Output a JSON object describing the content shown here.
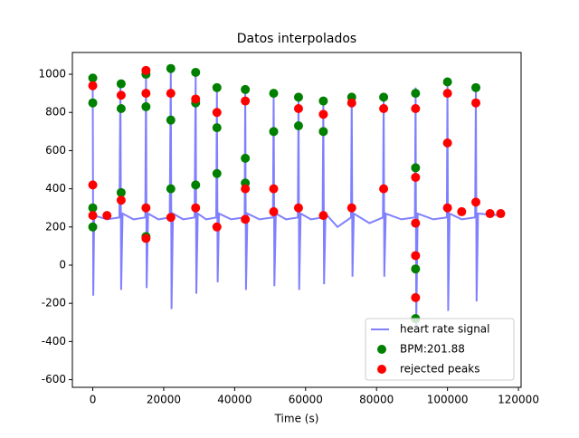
{
  "chart_data": {
    "type": "line_scatter",
    "title": "Datos interpolados",
    "x_label": "Time (s)",
    "xlim": [
      -5750,
      120750
    ],
    "ylim": [
      -640,
      1114
    ],
    "xticks": [
      0,
      20000,
      40000,
      60000,
      80000,
      100000,
      120000
    ],
    "yticks": [
      -600,
      -400,
      -200,
      0,
      200,
      400,
      600,
      800,
      1000
    ],
    "legend_position": "lower right",
    "line": {
      "name": "heart rate signal",
      "color": "#8080ff",
      "x": [
        0,
        150,
        400,
        4000,
        7500,
        7800,
        8000,
        8400,
        11500,
        14800,
        15000,
        15200,
        15600,
        18500,
        21700,
        22000,
        22200,
        22600,
        25500,
        28700,
        29000,
        29200,
        29600,
        32000,
        34800,
        35000,
        35200,
        35600,
        39000,
        42800,
        43000,
        43200,
        43600,
        47000,
        50800,
        51000,
        51200,
        51600,
        54500,
        57800,
        58000,
        58200,
        58600,
        61500,
        64800,
        65000,
        65200,
        65600,
        69000,
        72800,
        73000,
        73200,
        73600,
        78000,
        81800,
        82000,
        82200,
        82600,
        87000,
        90800,
        91000,
        91200,
        91600,
        96000,
        99800,
        100000,
        100200,
        100600,
        104000,
        107800,
        108000,
        108200,
        108600,
        115000
      ],
      "y": [
        980,
        -160,
        260,
        240,
        250,
        960,
        -130,
        270,
        240,
        250,
        1020,
        -120,
        270,
        240,
        250,
        1030,
        -230,
        270,
        240,
        250,
        1010,
        -150,
        270,
        240,
        250,
        930,
        -90,
        270,
        240,
        250,
        930,
        -130,
        270,
        240,
        250,
        910,
        -110,
        270,
        240,
        250,
        890,
        -130,
        270,
        240,
        250,
        870,
        -100,
        270,
        200,
        250,
        890,
        -60,
        270,
        220,
        250,
        900,
        -60,
        270,
        240,
        250,
        930,
        -320,
        270,
        240,
        250,
        960,
        -240,
        270,
        240,
        250,
        940,
        -190,
        270,
        260
      ]
    },
    "series": [
      {
        "name": "BPM:201.88",
        "color": "#008000",
        "x": [
          0,
          0,
          0,
          0,
          8000,
          8000,
          8000,
          15000,
          15000,
          15000,
          22000,
          22000,
          22000,
          29000,
          29000,
          29000,
          35000,
          35000,
          35000,
          43000,
          43000,
          43000,
          51000,
          51000,
          58000,
          58000,
          65000,
          65000,
          73000,
          82000,
          91000,
          91000,
          91000,
          91000,
          100000,
          108000
        ],
        "y": [
          980,
          850,
          300,
          200,
          950,
          820,
          380,
          1000,
          830,
          150,
          1030,
          760,
          400,
          1010,
          850,
          420,
          930,
          720,
          480,
          920,
          560,
          430,
          900,
          700,
          880,
          730,
          860,
          700,
          880,
          880,
          900,
          510,
          -20,
          -280,
          960,
          930
        ]
      },
      {
        "name": "rejected peaks",
        "color": "#ff0000",
        "x": [
          0,
          0,
          0,
          4000,
          8000,
          8000,
          15000,
          15000,
          15000,
          15000,
          22000,
          22000,
          29000,
          29000,
          35000,
          35000,
          43000,
          43000,
          43000,
          51000,
          51000,
          58000,
          58000,
          65000,
          65000,
          73000,
          73000,
          82000,
          82000,
          91000,
          91000,
          91000,
          91000,
          91000,
          100000,
          100000,
          100000,
          104000,
          108000,
          108000,
          112000,
          115000
        ],
        "y": [
          940,
          420,
          260,
          260,
          890,
          340,
          1020,
          900,
          140,
          300,
          900,
          250,
          870,
          300,
          800,
          200,
          860,
          240,
          400,
          400,
          280,
          820,
          300,
          790,
          260,
          850,
          300,
          820,
          400,
          820,
          460,
          -170,
          220,
          50,
          900,
          640,
          300,
          280,
          850,
          330,
          270,
          270
        ]
      }
    ]
  }
}
